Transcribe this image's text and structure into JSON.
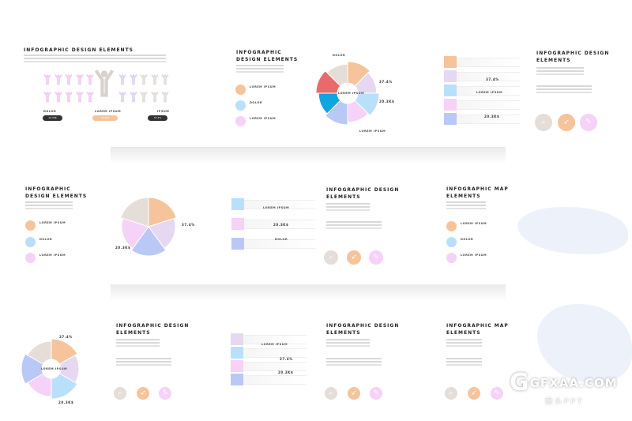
{
  "title": "INFOGRAPHIC DESIGN ELEMENTS",
  "title_line1": "INFOGRAPHIC",
  "title_line2": "DESIGN ELEMENTS",
  "title_a": "INFOGRAPHIC DESIGN",
  "title_b": "ELEMENTS",
  "map_title_a": "INFOGRAPHIC MAP",
  "map_title_b": "ELEMENTS",
  "labels": {
    "lorem": "LOREM IPSUM",
    "dolor": "DOLOR",
    "ipsum": "IPSUM"
  },
  "values": {
    "percent": "37.4%",
    "money": "20.3K$",
    "count": "12.34K"
  },
  "colors": {
    "peach": "#f5c49a",
    "lavender": "#e6d8f2",
    "blue": "#b9e0fa",
    "pink": "#f6d1f8",
    "periwinkle": "#b9c8f5",
    "beige": "#e5ddd8",
    "red": "#e86a6a",
    "cyan": "#0ea5e0",
    "dark": "#333333"
  },
  "pie_main": [
    "#f5c49a",
    "#e6d8f2",
    "#b9e0fa",
    "#f6d1f8",
    "#b9c8f5",
    "#0ea5e0",
    "#e86a6a",
    "#e5ddd8"
  ],
  "pie_five": [
    "#f5c49a",
    "#e6d8f2",
    "#b9c8f5",
    "#f6d1f8",
    "#e5ddd8"
  ],
  "pie_six": [
    "#f5c49a",
    "#e6d8f2",
    "#b9e0fa",
    "#f6d1f8",
    "#b9c8f5",
    "#e5ddd8"
  ],
  "watermark": {
    "brand": "GFXAA.COM",
    "sub": "图头PPT"
  }
}
